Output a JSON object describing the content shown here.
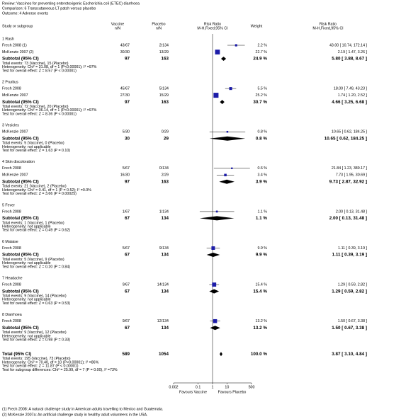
{
  "chart_data": {
    "type": "forest",
    "review": "Review:   Vaccines for preventing enterotoxigenic Escherichia coli (ETEC) diarrhoea",
    "comparison": "Comparison:  6 Transcutaneous LT patch versus placebo",
    "outcome": "Outcome:  4 Adverse events",
    "columns": [
      "Study or subgroup",
      "Vaccine",
      "n/N",
      "Placebo",
      "n/N",
      "Risk Ratio",
      "M-H,Fixed,95% CI",
      "Weight",
      "Risk Ratio",
      "M-H,Fixed,95% CI"
    ],
    "log_scale": true,
    "xlim": [
      0.002,
      500
    ],
    "xticks": [
      0.002,
      0.1,
      1,
      10,
      500
    ],
    "favours_left": "Favours Vaccine",
    "favours_right": "Favours Placebo",
    "box_color": "#1c1ca8",
    "groups": [
      {
        "name": "1 Rash",
        "studies": [
          {
            "name": "Frech 2008 (1)",
            "vaccine": "43/67",
            "placebo": "2/134",
            "weight": 2.2,
            "weight_label": "2.2 %",
            "rr": 43.0,
            "lo": 10.74,
            "hi": 172.14,
            "ci_label": "43.00 [ 10.74, 172.14 ]"
          },
          {
            "name": "McKenzie 2007 (2)",
            "vaccine": "30/30",
            "placebo": "13/29",
            "weight": 22.7,
            "weight_label": "22.7 %",
            "rr": 2.19,
            "lo": 1.47,
            "hi": 3.26,
            "ci_label": "2.19 [ 1.47, 3.26 ]"
          }
        ],
        "subtotal": {
          "label": "Subtotal (95% CI)",
          "vaccine": 97,
          "placebo": 163,
          "weight": 24.9,
          "weight_label": "24.9 %",
          "rr": 5.8,
          "lo": 3.88,
          "hi": 8.67,
          "ci_label": "5.80 [ 3.88, 8.67 ]"
        },
        "notes": [
          "Total events: 73 (Vaccine), 15 (Placebo)",
          "Heterogeneity: Chi² = 31.08, df = 1 (P<0.00001); I² =97%",
          "Test for overall effect: Z = 8.57 (P < 0.00001)"
        ]
      },
      {
        "name": "2 Pruritus",
        "studies": [
          {
            "name": "Frech 2008",
            "vaccine": "45/67",
            "placebo": "5/134",
            "weight": 5.5,
            "weight_label": "5.5 %",
            "rr": 18.0,
            "lo": 7.49,
            "hi": 43.23,
            "ci_label": "18.00 [ 7.49, 43.23 ]"
          },
          {
            "name": "McKenzie 2007",
            "vaccine": "27/30",
            "placebo": "15/29",
            "weight": 25.2,
            "weight_label": "25.2 %",
            "rr": 1.74,
            "lo": 1.2,
            "hi": 2.52,
            "ci_label": "1.74 [ 1.20, 2.52 ]"
          }
        ],
        "subtotal": {
          "label": "Subtotal (95% CI)",
          "vaccine": 97,
          "placebo": 163,
          "weight": 30.7,
          "weight_label": "30.7 %",
          "rr": 4.66,
          "lo": 3.25,
          "hi": 6.68,
          "ci_label": "4.66 [ 3.25, 6.68 ]"
        },
        "notes": [
          "Total events: 72 (Vaccine), 20 (Placebo)",
          "Heterogeneity: Chi² = 36.14, df = 1 (P<0.00001); I² =97%",
          "Test for overall effect: Z = 8.36 (P < 0.00001)"
        ]
      },
      {
        "name": "3 Vesicles",
        "studies": [
          {
            "name": "McKenzie 2007",
            "vaccine": "5/30",
            "placebo": "0/29",
            "weight": 0.8,
            "weight_label": "0.8 %",
            "rr": 10.65,
            "lo": 0.62,
            "hi": 184.25,
            "ci_label": "10.65 [ 0.62, 184.25 ]"
          }
        ],
        "subtotal": {
          "label": "Subtotal (95% CI)",
          "vaccine": 30,
          "placebo": 29,
          "weight": 0.8,
          "weight_label": "0.8 %",
          "rr": 10.65,
          "lo": 0.62,
          "hi": 184.25,
          "ci_label": "10.65 [ 0.62, 184.25 ]"
        },
        "notes": [
          "Total events: 5 (Vaccine), 0 (Placebo)",
          "Heterogeneity: not applicable",
          "Test for overall effect: Z = 1.63 (P = 0.10)"
        ]
      },
      {
        "name": "4 Skin discoloration",
        "studies": [
          {
            "name": "Frech 2008",
            "vaccine": "5/67",
            "placebo": "0/134",
            "weight": 0.6,
            "weight_label": "0.6 %",
            "rr": 21.84,
            "lo": 1.23,
            "hi": 389.17,
            "ci_label": "21.84 [ 1.23, 389.17 ]"
          },
          {
            "name": "McKenzie 2007",
            "vaccine": "16/30",
            "placebo": "2/29",
            "weight": 3.4,
            "weight_label": "3.4 %",
            "rr": 7.73,
            "lo": 1.95,
            "hi": 30.69,
            "ci_label": "7.73 [ 1.95, 30.69 ]"
          }
        ],
        "subtotal": {
          "label": "Subtotal (95% CI)",
          "vaccine": 97,
          "placebo": 163,
          "weight": 3.9,
          "weight_label": "3.9 %",
          "rr": 9.73,
          "lo": 2.87,
          "hi": 32.92,
          "ci_label": "9.73 [ 2.87, 32.92 ]"
        },
        "notes": [
          "Total events: 21 (Vaccine), 2 (Placebo)",
          "Heterogeneity: Chi² = 0.41, df = 1 (P = 0.52); I² =0.0%",
          "Test for overall effect: Z = 3.66 (P = 0.00025)"
        ]
      },
      {
        "name": "5 Fever",
        "studies": [
          {
            "name": "Frech 2008",
            "vaccine": "1/67",
            "placebo": "1/134",
            "weight": 1.1,
            "weight_label": "1.1 %",
            "rr": 2.0,
            "lo": 0.13,
            "hi": 31.48,
            "ci_label": "2.00 [ 0.13, 31.48 ]"
          }
        ],
        "subtotal": {
          "label": "Subtotal (95% CI)",
          "vaccine": 67,
          "placebo": 134,
          "weight": 1.1,
          "weight_label": "1.1 %",
          "rr": 2.0,
          "lo": 0.13,
          "hi": 31.48,
          "ci_label": "2.00 [ 0.13, 31.48 ]"
        },
        "notes": [
          "Total events: 1 (Vaccine), 1 (Placebo)",
          "Heterogeneity: not applicable",
          "Test for overall effect: Z = 0.49 (P = 0.62)"
        ]
      },
      {
        "name": "6 Malaise",
        "studies": [
          {
            "name": "Frech 2008",
            "vaccine": "5/67",
            "placebo": "9/134",
            "weight": 9.9,
            "weight_label": "9.9 %",
            "rr": 1.11,
            "lo": 0.39,
            "hi": 3.19,
            "ci_label": "1.11 [ 0.39, 3.19 ]"
          }
        ],
        "subtotal": {
          "label": "Subtotal (95% CI)",
          "vaccine": 67,
          "placebo": 134,
          "weight": 9.9,
          "weight_label": "9.9 %",
          "rr": 1.11,
          "lo": 0.39,
          "hi": 3.19,
          "ci_label": "1.11 [ 0.39, 3.19 ]"
        },
        "notes": [
          "Total events: 5 (Vaccine), 9 (Placebo)",
          "Heterogeneity: not applicable",
          "Test for overall effect: Z = 0.20 (P = 0.84)"
        ]
      },
      {
        "name": "7 Headache",
        "studies": [
          {
            "name": "Frech 2008",
            "vaccine": "9/67",
            "placebo": "14/134",
            "weight": 15.4,
            "weight_label": "15.4 %",
            "rr": 1.29,
            "lo": 0.59,
            "hi": 2.82,
            "ci_label": "1.29 [ 0.59, 2.82 ]"
          }
        ],
        "subtotal": {
          "label": "Subtotal (95% CI)",
          "vaccine": 67,
          "placebo": 134,
          "weight": 15.4,
          "weight_label": "15.4 %",
          "rr": 1.29,
          "lo": 0.59,
          "hi": 2.82,
          "ci_label": "1.29 [ 0.59, 2.82 ]"
        },
        "notes": [
          "Total events: 9 (Vaccine), 14 (Placebo)",
          "Heterogeneity: not applicable",
          "Test for overall effect: Z = 0.63 (P = 0.53)"
        ]
      },
      {
        "name": "8 Diarrhoea",
        "studies": [
          {
            "name": "Frech 2008",
            "vaccine": "9/67",
            "placebo": "12/134",
            "weight": 13.2,
            "weight_label": "13.2 %",
            "rr": 1.5,
            "lo": 0.67,
            "hi": 3.38,
            "ci_label": "1.50 [ 0.67, 3.38 ]"
          }
        ],
        "subtotal": {
          "label": "Subtotal (95% CI)",
          "vaccine": 67,
          "placebo": 134,
          "weight": 13.2,
          "weight_label": "13.2 %",
          "rr": 1.5,
          "lo": 0.67,
          "hi": 3.38,
          "ci_label": "1.50 [ 0.67, 3.38 ]"
        },
        "notes": [
          "Total events: 9 (Vaccine), 12 (Placebo)",
          "Heterogeneity: not applicable",
          "Test for overall effect: Z = 0.98 (P = 0.33)"
        ]
      }
    ],
    "total": {
      "label": "Total (95% CI)",
      "vaccine": 589,
      "placebo": 1054,
      "weight": 100.0,
      "weight_label": "100.0 %",
      "rr": 3.87,
      "lo": 3.1,
      "hi": 4.84,
      "ci_label": "3.87 [ 3.10, 4.84 ]",
      "notes": [
        "Total events: 195 (Vaccine), 73 (Placebo)",
        "Heterogeneity: Chi² = 70.40, df = 10 (P<0.00001); I² =86%",
        "Test for overall effect: Z = 11.87 (P < 0.00001)",
        "Test for subgroup differences: Chi² = 25.99, df = 7 (P = 0.00), I² =73%"
      ]
    },
    "footnotes": [
      "(1) Frech 2008: A natural challenge study in American adults travelling to Mexico and Guatemala.",
      "(2) McKenzie 2007a: An artificial challenge study in healthy adult volunteers in the USA."
    ]
  }
}
